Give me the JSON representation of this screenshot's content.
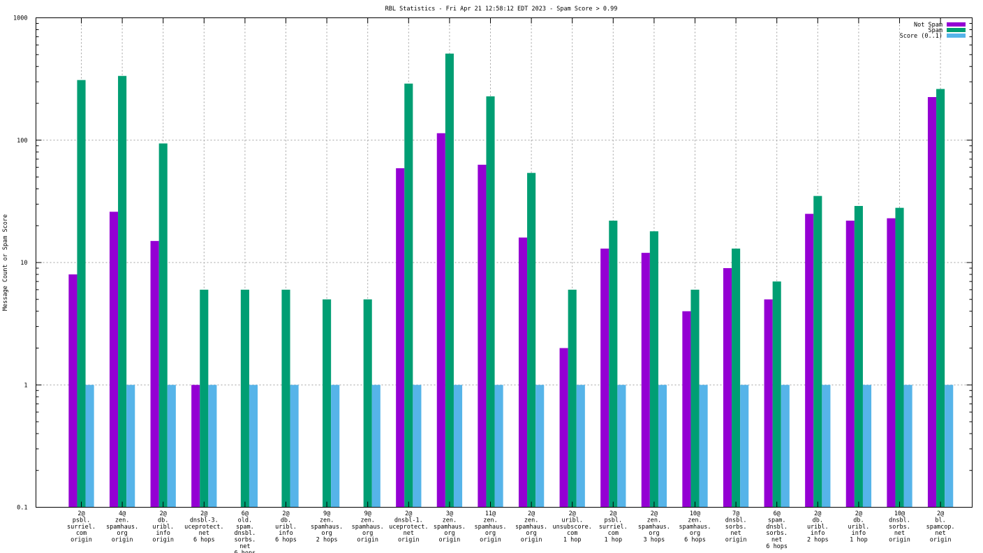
{
  "chart_data": {
    "type": "bar",
    "title": "RBL Statistics - Fri Apr 21 12:58:12 EDT 2023 - Spam Score > 0.99",
    "ylabel": "Message Count or Spam Score",
    "xlabel": "",
    "yscale": "log",
    "ylim": [
      0.1,
      1000
    ],
    "ytick_labels": [
      "0.1",
      "1",
      "10",
      "100",
      "1000"
    ],
    "grid": true,
    "legend_position": "top-right",
    "categories": [
      [
        "2@",
        "psbl.",
        "surriel.",
        "com",
        "origin"
      ],
      [
        "4@",
        "zen.",
        "spamhaus.",
        "org",
        "origin"
      ],
      [
        "2@",
        "db.",
        "uribl.",
        "info",
        "origin"
      ],
      [
        "2@",
        "dnsbl-3.",
        "uceprotect.",
        "net",
        "6 hops"
      ],
      [
        "6@",
        "old.",
        "spam.",
        "dnsbl.",
        "sorbs.",
        "net",
        "6 hops"
      ],
      [
        "2@",
        "db.",
        "uribl.",
        "info",
        "6 hops"
      ],
      [
        "9@",
        "zen.",
        "spamhaus.",
        "org",
        "2 hops"
      ],
      [
        "9@",
        "zen.",
        "spamhaus.",
        "org",
        "origin"
      ],
      [
        "2@",
        "dnsbl-1.",
        "uceprotect.",
        "net",
        "origin"
      ],
      [
        "3@",
        "zen.",
        "spamhaus.",
        "org",
        "origin"
      ],
      [
        "11@",
        "zen.",
        "spamhaus.",
        "org",
        "origin"
      ],
      [
        "2@",
        "zen.",
        "spamhaus.",
        "org",
        "origin"
      ],
      [
        "2@",
        "uribl.",
        "unsubscore.",
        "com",
        "1 hop"
      ],
      [
        "2@",
        "psbl.",
        "surriel.",
        "com",
        "1 hop"
      ],
      [
        "2@",
        "zen.",
        "spamhaus.",
        "org",
        "3 hops"
      ],
      [
        "10@",
        "zen.",
        "spamhaus.",
        "org",
        "6 hops"
      ],
      [
        "7@",
        "dnsbl.",
        "sorbs.",
        "net",
        "origin"
      ],
      [
        "6@",
        "spam.",
        "dnsbl.",
        "sorbs.",
        "net",
        "6 hops"
      ],
      [
        "2@",
        "db.",
        "uribl.",
        "info",
        "2 hops"
      ],
      [
        "2@",
        "db.",
        "uribl.",
        "info",
        "1 hop"
      ],
      [
        "10@",
        "dnsbl.",
        "sorbs.",
        "net",
        "origin"
      ],
      [
        "2@",
        "bl.",
        "spamcop.",
        "net",
        "origin"
      ]
    ],
    "series": [
      {
        "name": "Not Spam",
        "color": "#9400d3",
        "values": [
          8,
          26,
          15,
          1,
          null,
          null,
          null,
          null,
          59,
          114,
          63,
          16,
          2,
          13,
          12,
          4,
          9,
          5,
          25,
          22,
          23,
          225
        ]
      },
      {
        "name": "Spam",
        "color": "#009e73",
        "values": [
          310,
          335,
          94,
          6,
          6,
          6,
          5,
          5,
          290,
          510,
          228,
          54,
          6,
          22,
          18,
          6,
          13,
          7,
          35,
          29,
          28,
          262
        ]
      },
      {
        "name": "Score (0..1)",
        "color": "#56b4e9",
        "values": [
          1,
          1,
          1,
          1,
          1,
          1,
          1,
          1,
          1,
          1,
          1,
          1,
          1,
          1,
          1,
          1,
          1,
          1,
          1,
          1,
          1,
          1
        ]
      }
    ]
  }
}
